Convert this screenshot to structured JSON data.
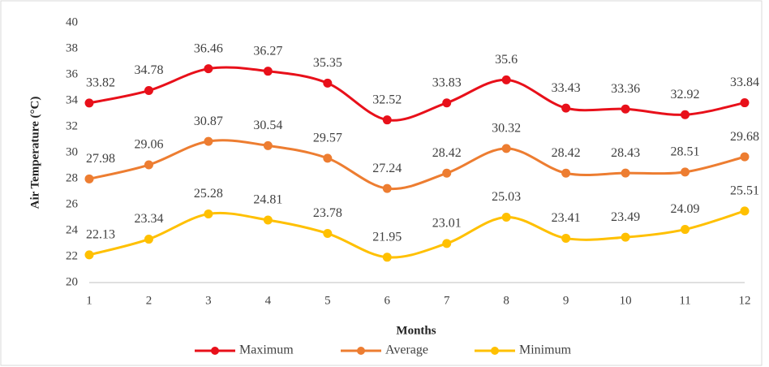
{
  "chart_data": {
    "type": "line",
    "x_label": "Months",
    "y_label": "Air Temperature (°C)",
    "x": [
      1,
      2,
      3,
      4,
      5,
      6,
      7,
      8,
      9,
      10,
      11,
      12
    ],
    "xlim": [
      1,
      12
    ],
    "xticks": [
      1,
      2,
      3,
      4,
      5,
      6,
      7,
      8,
      9,
      10,
      11,
      12
    ],
    "ylim": [
      20,
      40
    ],
    "yticks": [
      20,
      22,
      24,
      26,
      28,
      30,
      32,
      34,
      36,
      38,
      40
    ],
    "grid": false,
    "smooth": true,
    "legend": "bottom",
    "series": [
      {
        "name": "Maximum",
        "color": "#e8101a",
        "values": [
          33.82,
          34.78,
          36.46,
          36.27,
          35.35,
          32.52,
          33.83,
          35.6,
          33.43,
          33.36,
          32.92,
          33.84
        ]
      },
      {
        "name": "Average",
        "color": "#ed7d31",
        "values": [
          27.98,
          29.06,
          30.87,
          30.54,
          29.57,
          27.24,
          28.42,
          30.32,
          28.42,
          28.43,
          28.51,
          29.68
        ]
      },
      {
        "name": "Minimum",
        "color": "#ffc000",
        "values": [
          22.13,
          23.34,
          25.28,
          24.81,
          23.78,
          21.95,
          23.01,
          25.03,
          23.41,
          23.49,
          24.09,
          25.51
        ]
      }
    ]
  }
}
